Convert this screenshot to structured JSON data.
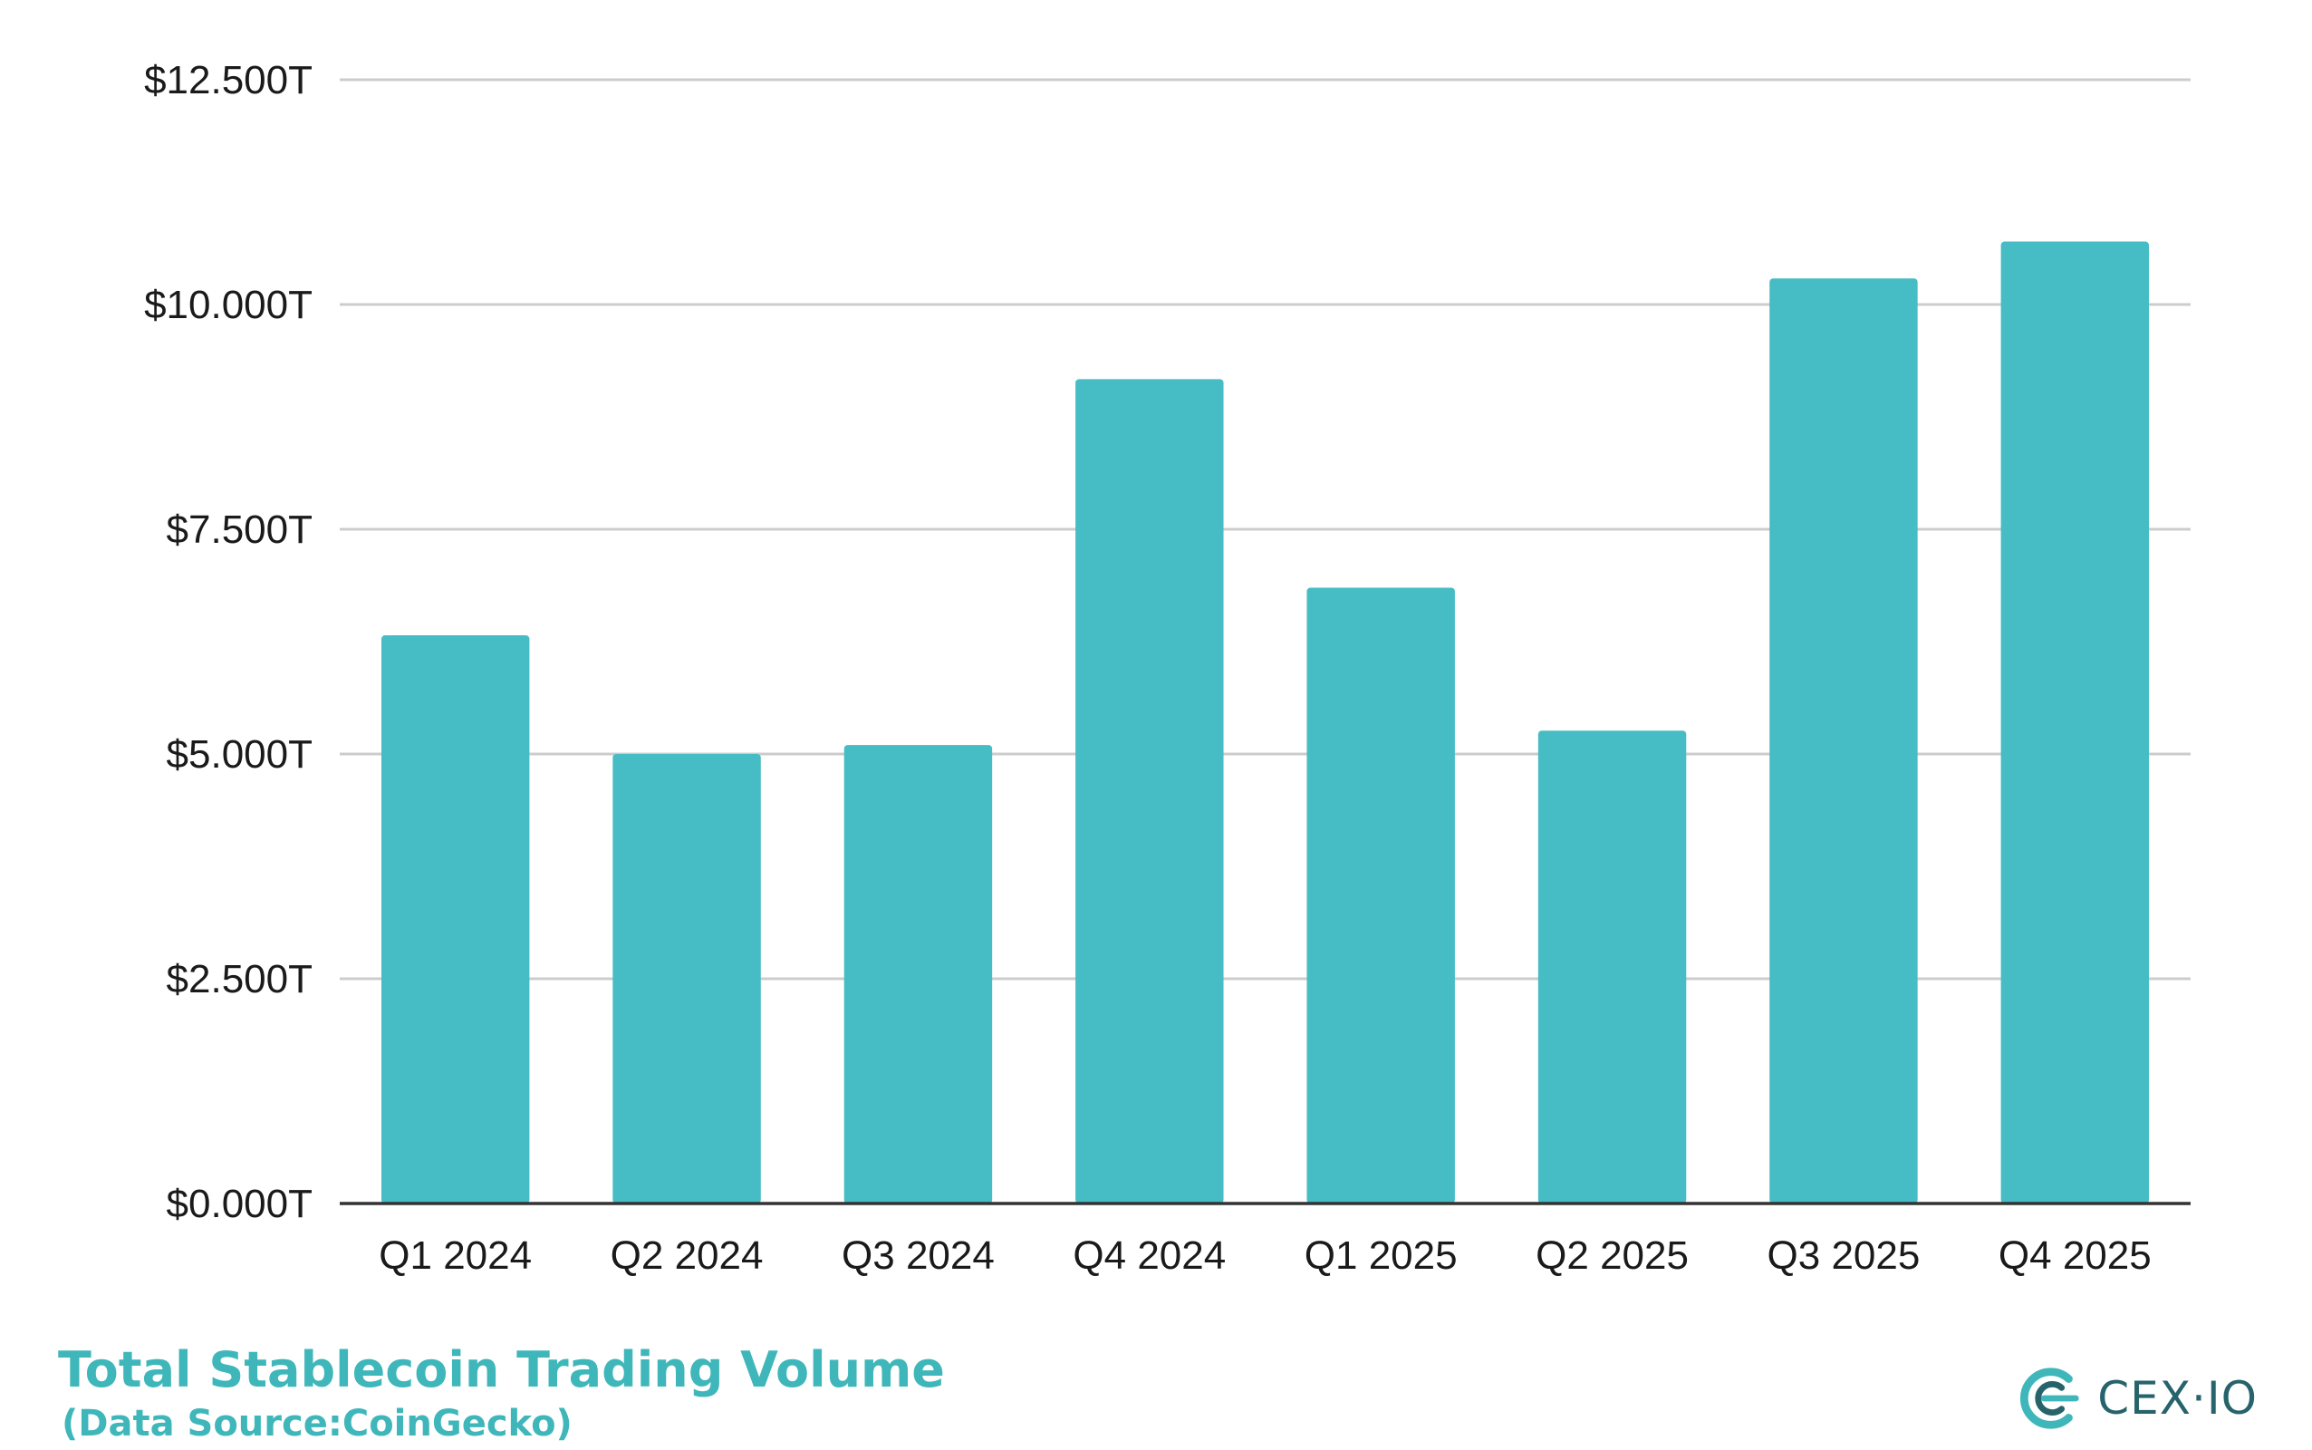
{
  "chart_data": {
    "type": "bar",
    "title": "Total Stablecoin Trading Volume",
    "subtitle": "(Data Source:CoinGecko)",
    "xlabel": "",
    "ylabel": "",
    "categories": [
      "Q1 2024",
      "Q2 2024",
      "Q3 2024",
      "Q4 2024",
      "Q1 2025",
      "Q2 2025",
      "Q3 2025",
      "Q4 2025"
    ],
    "values": [
      6.32,
      5.0,
      5.1,
      9.17,
      6.85,
      5.26,
      10.29,
      10.7
    ],
    "value_unit": "trillion USD",
    "y_ticks": [
      0,
      2.5,
      5,
      7.5,
      10,
      12.5
    ],
    "y_tick_labels": [
      "$0.000T",
      "$2.500T",
      "$5.000T",
      "$7.500T",
      "$10.000T",
      "$12.500T"
    ],
    "ylim": [
      0,
      12.5
    ],
    "grid": true,
    "legend": "none",
    "colors": {
      "bar": "#46bcc4",
      "grid": "#cccccc",
      "axis": "#333333",
      "title": "#3fb7ba",
      "brand": "#26636b"
    }
  },
  "footer": {
    "title": "Total Stablecoin Trading Volume",
    "source": "(Data Source:CoinGecko)"
  },
  "brand": {
    "name": "CEX·IO",
    "icon": "cex-io-logo-icon"
  }
}
